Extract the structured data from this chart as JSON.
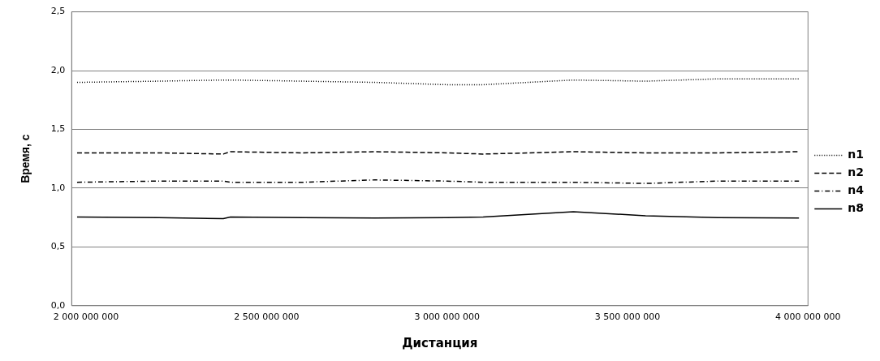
{
  "chart_data": {
    "type": "line",
    "xlabel": "Дистанция",
    "ylabel": "Время, с",
    "xlim": [
      1960000000,
      4000000000
    ],
    "xticks": [
      2000000000,
      2500000000,
      3000000000,
      3500000000,
      4000000000
    ],
    "ylim": [
      0,
      2.5
    ],
    "yticks": [
      {
        "value": 0,
        "label": "0,0"
      },
      {
        "value": 0.5,
        "label": "0,5"
      },
      {
        "value": 1,
        "label": "1,0"
      },
      {
        "value": 1.5,
        "label": "1,5"
      },
      {
        "value": 2,
        "label": "2,0"
      },
      {
        "value": 2.5,
        "label": "2,5"
      }
    ],
    "x": [
      1975000000,
      2200000000,
      2380000000,
      2400000000,
      2600000000,
      2800000000,
      3000000000,
      3100000000,
      3350000000,
      3550000000,
      3750000000,
      3975000000
    ],
    "grid": "y",
    "legend": "right",
    "marker": "none",
    "series": [
      {
        "name": "n1",
        "color": "#000000",
        "line_style": "dotted",
        "values": [
          1.9,
          1.91,
          1.92,
          1.92,
          1.91,
          1.9,
          1.88,
          1.88,
          1.92,
          1.91,
          1.93,
          1.93
        ]
      },
      {
        "name": "n2",
        "color": "#000000",
        "line_style": "dashed",
        "values": [
          1.3,
          1.3,
          1.29,
          1.31,
          1.3,
          1.31,
          1.3,
          1.29,
          1.31,
          1.3,
          1.3,
          1.31
        ]
      },
      {
        "name": "n4",
        "color": "#000000",
        "line_style": "dashdot",
        "values": [
          1.05,
          1.06,
          1.06,
          1.05,
          1.05,
          1.07,
          1.06,
          1.05,
          1.05,
          1.04,
          1.06,
          1.06
        ]
      },
      {
        "name": "n8",
        "color": "#000000",
        "line_style": "solid",
        "values": [
          0.755,
          0.75,
          0.74,
          0.755,
          0.75,
          0.745,
          0.75,
          0.755,
          0.8,
          0.765,
          0.75,
          0.745
        ]
      }
    ]
  }
}
